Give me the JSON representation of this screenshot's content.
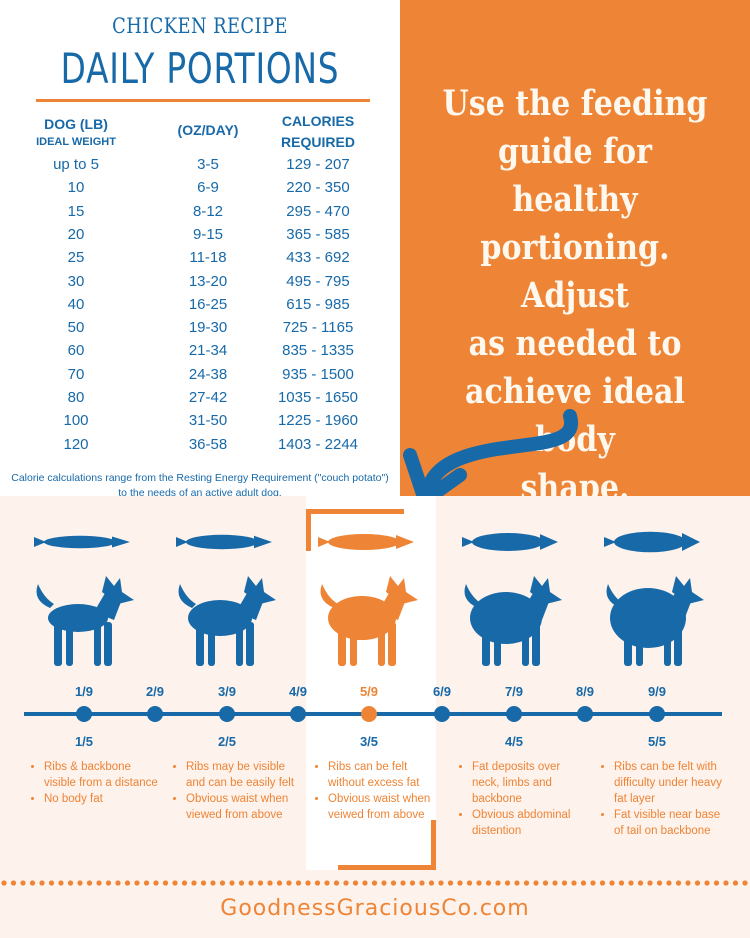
{
  "header": {
    "subtitle": "CHICKEN RECIPE",
    "title": "DAILY PORTIONS"
  },
  "table": {
    "col1_header_line1": "DOG (LB)",
    "col1_header_line2": "IDEAL WEIGHT",
    "col2_header": "(OZ/DAY)",
    "col3_header_line1": "CALORIES",
    "col3_header_line2": "REQUIRED",
    "rows": [
      {
        "weight": "up to 5",
        "oz": "3-5",
        "cal": "129 - 207"
      },
      {
        "weight": "10",
        "oz": "6-9",
        "cal": "220 - 350"
      },
      {
        "weight": "15",
        "oz": "8-12",
        "cal": "295 - 470"
      },
      {
        "weight": "20",
        "oz": "9-15",
        "cal": "365 - 585"
      },
      {
        "weight": "25",
        "oz": "11-18",
        "cal": "433 - 692"
      },
      {
        "weight": "30",
        "oz": "13-20",
        "cal": "495 - 795"
      },
      {
        "weight": "40",
        "oz": "16-25",
        "cal": "615 - 985"
      },
      {
        "weight": "50",
        "oz": "19-30",
        "cal": "725 - 1165"
      },
      {
        "weight": "60",
        "oz": "21-34",
        "cal": "835 - 1335"
      },
      {
        "weight": "70",
        "oz": "24-38",
        "cal": "935 - 1500"
      },
      {
        "weight": "80",
        "oz": "27-42",
        "cal": "1035 - 1650"
      },
      {
        "weight": "100",
        "oz": "31-50",
        "cal": "1225 - 1960"
      },
      {
        "weight": "120",
        "oz": "36-58",
        "cal": "1403 - 2244"
      }
    ],
    "note_line1": "Calorie calculations range from the Resting Energy Requirement (\"couch potato\")",
    "note_line2": "to the needs of an active adult dog."
  },
  "callout": {
    "lines": [
      "Use the feeding",
      "guide for healthy",
      "portioning. Adjust",
      "as needed to",
      "achieve ideal body",
      "shape."
    ]
  },
  "body_scale": {
    "nine_point": [
      "1/9",
      "2/9",
      "3/9",
      "4/9",
      "5/9",
      "6/9",
      "7/9",
      "8/9",
      "9/9"
    ],
    "five_point": [
      "1/5",
      "2/5",
      "3/5",
      "4/5",
      "5/5"
    ],
    "highlighted": "5/9",
    "descriptions": [
      [
        "Ribs &  backbone visible from a distance",
        "No body fat"
      ],
      [
        "Ribs may be visible and can be easily felt",
        "Obvious waist when viewed from above"
      ],
      [
        "Ribs can be felt without excess fat",
        "Obvious waist when veiwed from above"
      ],
      [
        "Fat deposits over neck, limbs and backbone",
        "Obvious abdominal distention"
      ],
      [
        "Ribs can be felt with difficulty under heavy fat layer",
        "Fat visible near base of tail on backbone"
      ]
    ]
  },
  "colors": {
    "blue": "#1769a8",
    "orange": "#ee8435",
    "cream": "#fdf2ec"
  },
  "footer": {
    "site": "GoodnessGraciousCo.com"
  }
}
